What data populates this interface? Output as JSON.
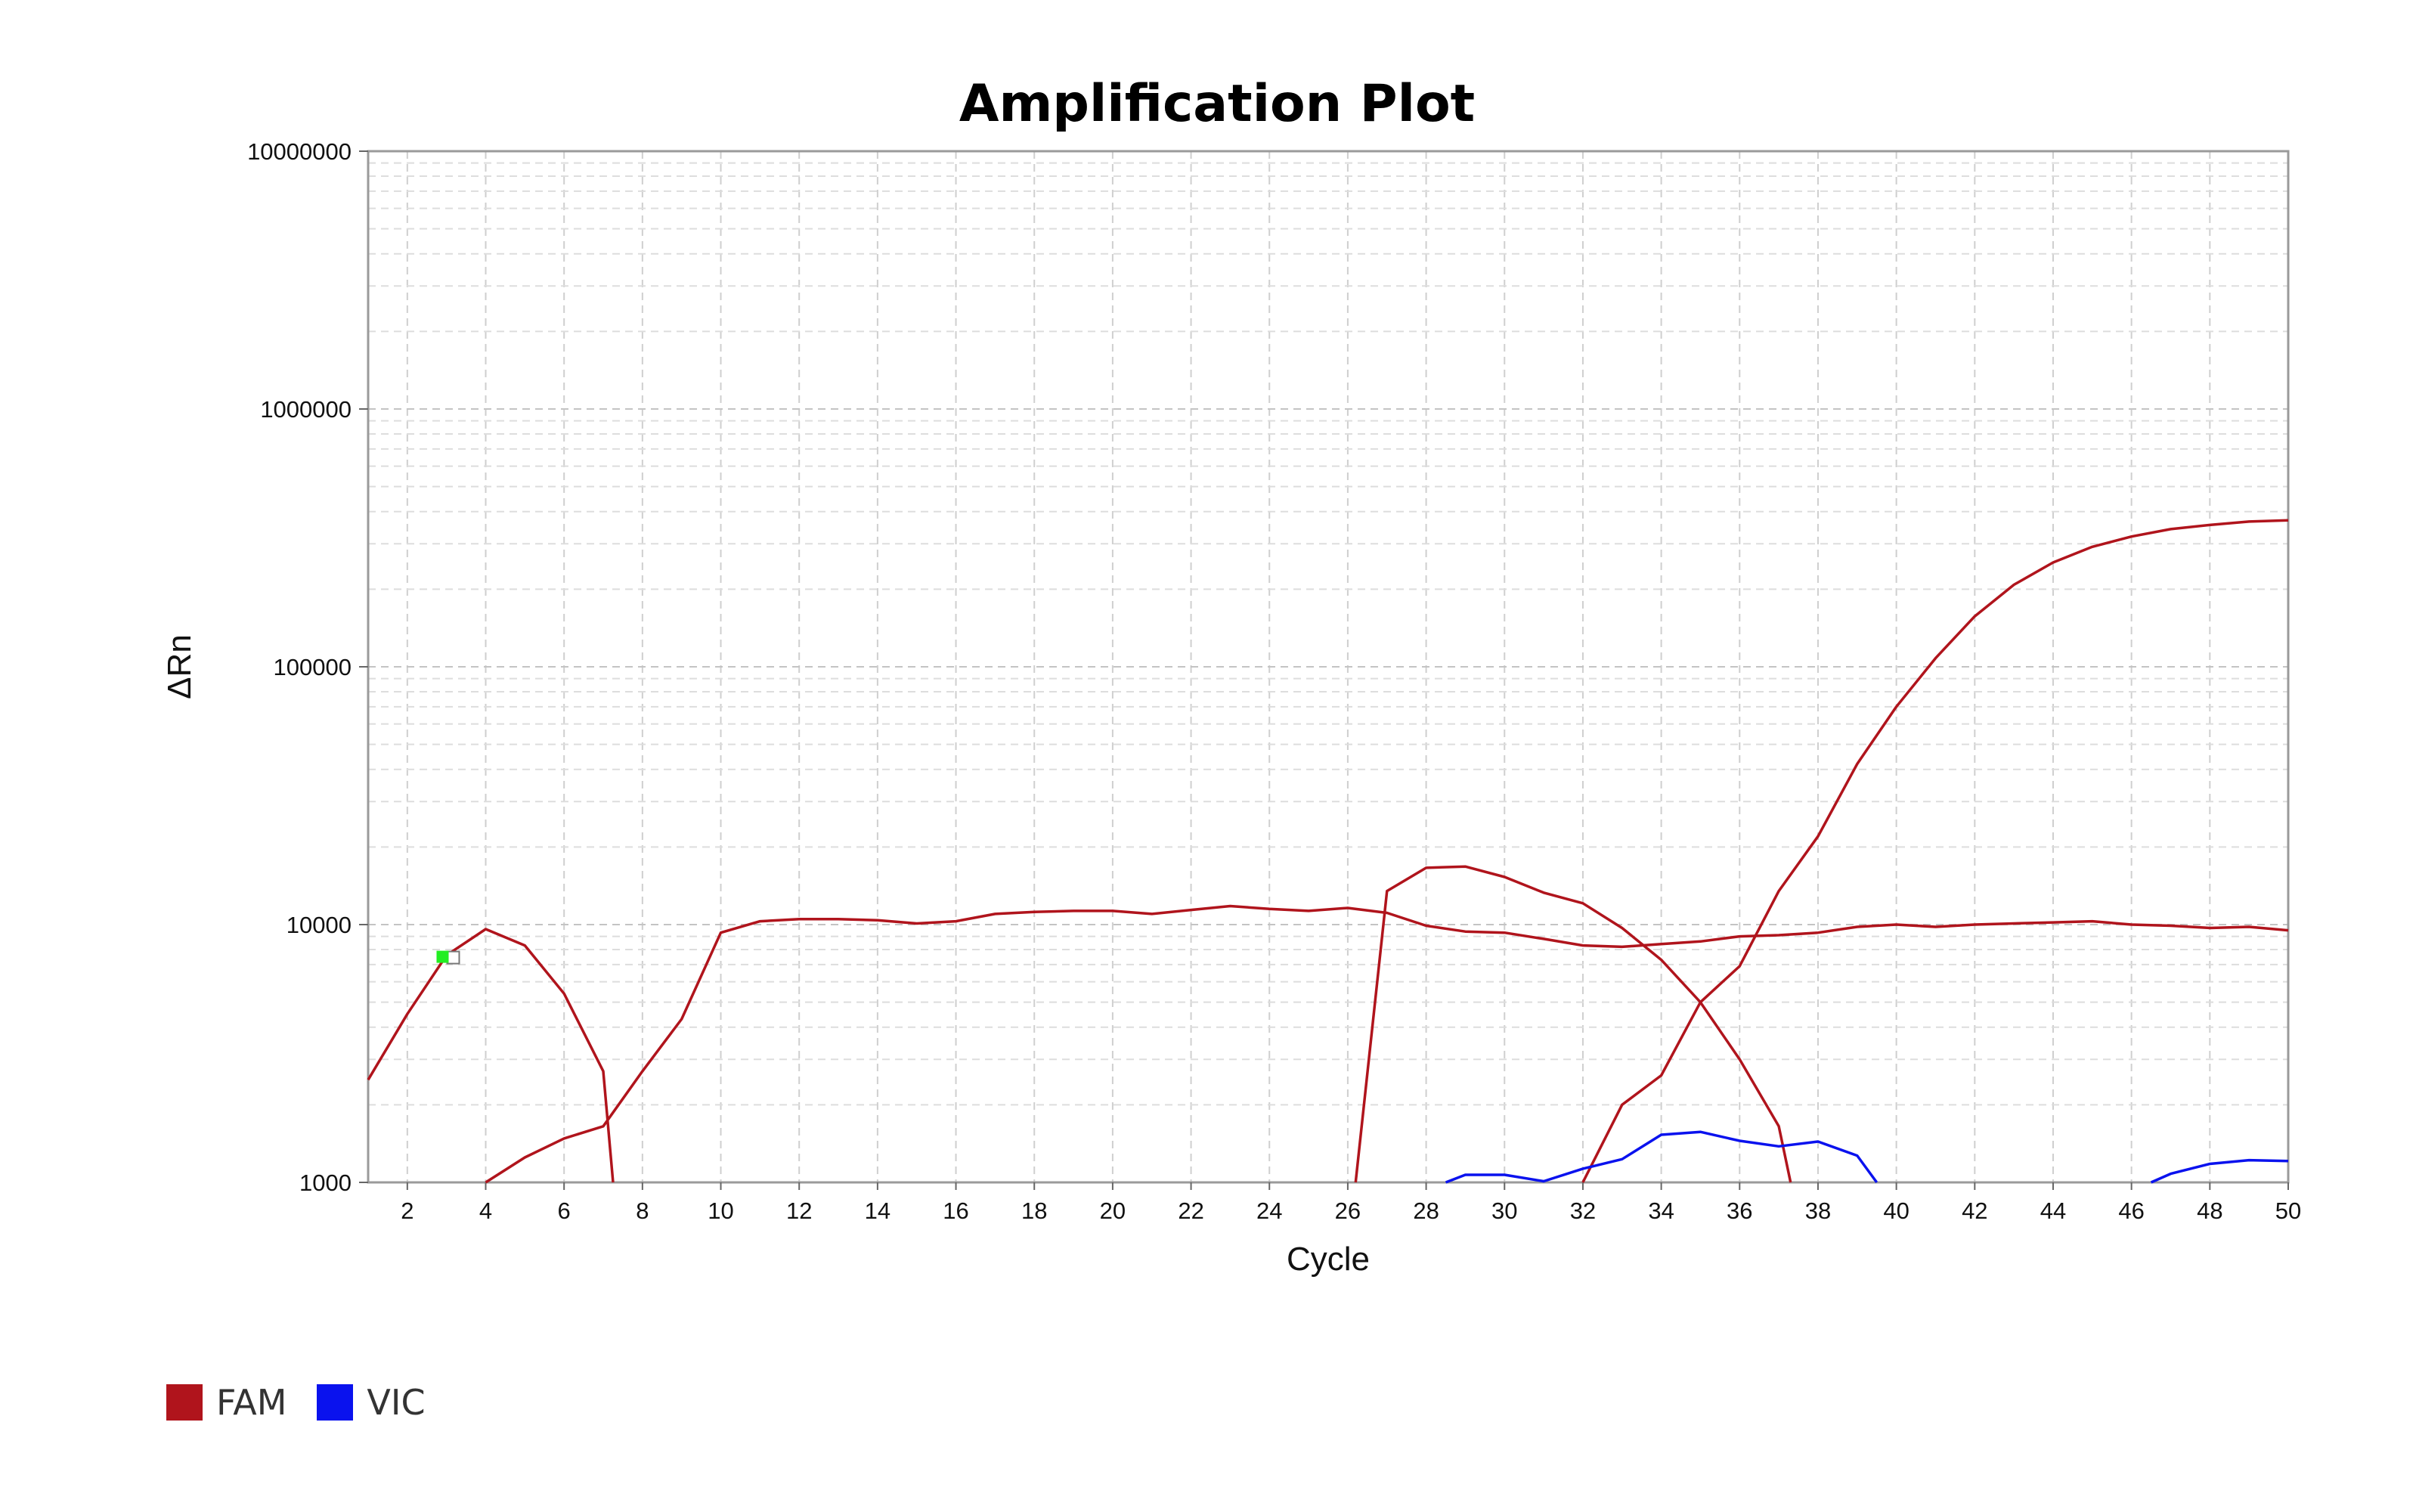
{
  "chart_data": {
    "type": "line",
    "title": "Amplification Plot",
    "xlabel": "Cycle",
    "ylabel": "ΔRn",
    "xlim": [
      1,
      50
    ],
    "ylim": [
      1000,
      10000000
    ],
    "yscale": "log",
    "grid": true,
    "legend_position": "bottom-left",
    "x_ticks": [
      2,
      4,
      6,
      8,
      10,
      12,
      14,
      16,
      18,
      20,
      22,
      24,
      26,
      28,
      30,
      32,
      34,
      36,
      38,
      40,
      42,
      44,
      46,
      48,
      50
    ],
    "y_ticks": [
      "1000",
      "10000",
      "100000",
      "1000000",
      "10000000"
    ],
    "legend": [
      {
        "name": "FAM",
        "color": "#b0141c"
      },
      {
        "name": "VIC",
        "color": "#0a12ee"
      }
    ],
    "series": [
      {
        "name": "FAM",
        "color": "#b0141c",
        "x": [
          1,
          2,
          3,
          4,
          5,
          6,
          7,
          7.25
        ],
        "y": [
          2500,
          4500,
          7600,
          9600,
          8300,
          5400,
          2700,
          1000
        ]
      },
      {
        "name": "FAM",
        "color": "#b0141c",
        "x": [
          4,
          5,
          6,
          7,
          8,
          9,
          10,
          11,
          12,
          13,
          14,
          15,
          16,
          17,
          18,
          19,
          20,
          21,
          22,
          23,
          24,
          25,
          26,
          27,
          28,
          29,
          30,
          31,
          32,
          33,
          34,
          35,
          36,
          37,
          38,
          39,
          40,
          41,
          42,
          43,
          44,
          45,
          46,
          47,
          48,
          49,
          50
        ],
        "y": [
          1000,
          1250,
          1480,
          1650,
          2700,
          4300,
          9300,
          10300,
          10500,
          10500,
          10400,
          10100,
          10300,
          11000,
          11200,
          11300,
          11300,
          11000,
          11400,
          11800,
          11500,
          11300,
          11600,
          11100,
          9900,
          9400,
          9300,
          8800,
          8300,
          8200,
          8400,
          8600,
          9000,
          9100,
          9300,
          9800,
          10000,
          9800,
          10000,
          10100,
          10200,
          10300,
          10000,
          9900,
          9700,
          9800,
          9500
        ]
      },
      {
        "name": "FAM",
        "color": "#b0141c",
        "x": [
          26.2,
          27,
          28,
          29,
          30,
          31,
          32,
          33,
          34,
          35,
          36,
          37,
          37.3
        ],
        "y": [
          1000,
          13500,
          16600,
          16800,
          15300,
          13300,
          12100,
          9700,
          7300,
          5000,
          3000,
          1650,
          1000
        ]
      },
      {
        "name": "FAM",
        "color": "#b0141c",
        "x": [
          32,
          33,
          34,
          35,
          36,
          37,
          38,
          39,
          40,
          41,
          42,
          43,
          44,
          45,
          46,
          47,
          48,
          49,
          50
        ],
        "y": [
          1000,
          2000,
          2600,
          5000,
          6900,
          13500,
          22000,
          42000,
          70000,
          108000,
          157000,
          208000,
          254000,
          292000,
          320000,
          342000,
          355000,
          366000,
          370000
        ]
      },
      {
        "name": "VIC",
        "color": "#0a12ee",
        "x": [
          28.5,
          29,
          30,
          31,
          32,
          33,
          34,
          35,
          36,
          37,
          38,
          39,
          39.5
        ],
        "y": [
          1000,
          1070,
          1070,
          1010,
          1130,
          1230,
          1530,
          1570,
          1450,
          1380,
          1440,
          1270,
          1000
        ]
      },
      {
        "name": "VIC",
        "color": "#0a12ee",
        "x": [
          46.5,
          47,
          48,
          49,
          50
        ],
        "y": [
          1000,
          1080,
          1180,
          1220,
          1210
        ]
      }
    ],
    "marker": {
      "x": 2.9,
      "y": 7500,
      "color": "#22ee22"
    }
  }
}
